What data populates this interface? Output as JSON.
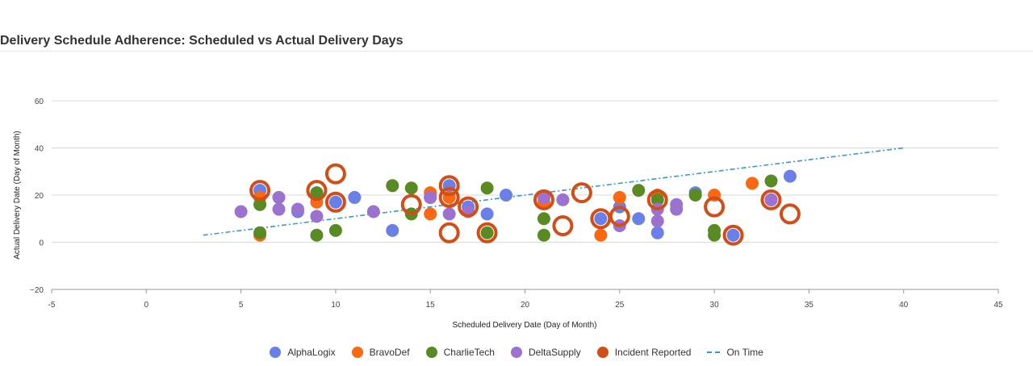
{
  "chart_data": {
    "type": "scatter",
    "title": "Delivery Schedule Adherence: Scheduled vs Actual Delivery Days",
    "xlabel": "Scheduled Delivery Date (Day of Month)",
    "ylabel": "Actual Delivery Date (Day of Month)",
    "xlim": [
      -5,
      45
    ],
    "ylim": [
      -20,
      60
    ],
    "xticks": [
      -5,
      0,
      5,
      10,
      15,
      20,
      25,
      30,
      35,
      40,
      45
    ],
    "yticks": [
      -20,
      0,
      20,
      40,
      60
    ],
    "grid": true,
    "legend_position": "bottom",
    "series": [
      {
        "name": "AlphaLogix",
        "color": "#6b7fe8",
        "points": [
          [
            6,
            22
          ],
          [
            8,
            13
          ],
          [
            10,
            17
          ],
          [
            11,
            19
          ],
          [
            13,
            5
          ],
          [
            15,
            19
          ],
          [
            16,
            24
          ],
          [
            17,
            15
          ],
          [
            18,
            12
          ],
          [
            19,
            20
          ],
          [
            24,
            10
          ],
          [
            25,
            15
          ],
          [
            26,
            10
          ],
          [
            27,
            4
          ],
          [
            29,
            21
          ],
          [
            31,
            3
          ],
          [
            34,
            28
          ]
        ]
      },
      {
        "name": "BravoDef",
        "color": "#f96914",
        "points": [
          [
            6,
            19
          ],
          [
            6,
            3
          ],
          [
            9,
            17
          ],
          [
            15,
            21
          ],
          [
            15,
            12
          ],
          [
            16,
            19
          ],
          [
            21,
            17
          ],
          [
            24,
            3
          ],
          [
            25,
            19
          ],
          [
            27,
            20
          ],
          [
            30,
            20
          ],
          [
            32,
            25
          ],
          [
            33,
            18
          ]
        ]
      },
      {
        "name": "CharlieTech",
        "color": "#5a8a23",
        "points": [
          [
            6,
            16
          ],
          [
            6,
            4
          ],
          [
            9,
            21
          ],
          [
            9,
            3
          ],
          [
            10,
            5
          ],
          [
            13,
            24
          ],
          [
            14,
            23
          ],
          [
            14,
            12
          ],
          [
            18,
            23
          ],
          [
            18,
            4
          ],
          [
            21,
            10
          ],
          [
            21,
            3
          ],
          [
            26,
            22
          ],
          [
            27,
            18
          ],
          [
            29,
            20
          ],
          [
            30,
            5
          ],
          [
            30,
            3
          ],
          [
            33,
            26
          ]
        ]
      },
      {
        "name": "DeltaSupply",
        "color": "#9b72cf",
        "points": [
          [
            5,
            13
          ],
          [
            7,
            19
          ],
          [
            7,
            14
          ],
          [
            8,
            14
          ],
          [
            9,
            11
          ],
          [
            12,
            13
          ],
          [
            15,
            19
          ],
          [
            16,
            12
          ],
          [
            17,
            13
          ],
          [
            21,
            19
          ],
          [
            22,
            18
          ],
          [
            25,
            7
          ],
          [
            27,
            14
          ],
          [
            27,
            9
          ],
          [
            28,
            16
          ],
          [
            28,
            14
          ],
          [
            33,
            18
          ]
        ]
      },
      {
        "name": "Incident Reported",
        "color": "#d24e16",
        "points": [
          [
            6,
            22
          ],
          [
            9,
            22
          ],
          [
            10,
            29
          ],
          [
            10,
            17
          ],
          [
            14,
            16
          ],
          [
            16,
            24
          ],
          [
            16,
            19
          ],
          [
            16,
            4
          ],
          [
            17,
            15
          ],
          [
            18,
            4
          ],
          [
            21,
            18
          ],
          [
            22,
            7
          ],
          [
            23,
            21
          ],
          [
            24,
            10
          ],
          [
            25,
            11
          ],
          [
            27,
            18
          ],
          [
            30,
            15
          ],
          [
            31,
            3
          ],
          [
            33,
            18
          ],
          [
            34,
            12
          ]
        ]
      }
    ],
    "trend": {
      "name": "On Time",
      "color": "#3498db",
      "x": [
        3,
        40
      ],
      "y": [
        3,
        40
      ]
    }
  }
}
